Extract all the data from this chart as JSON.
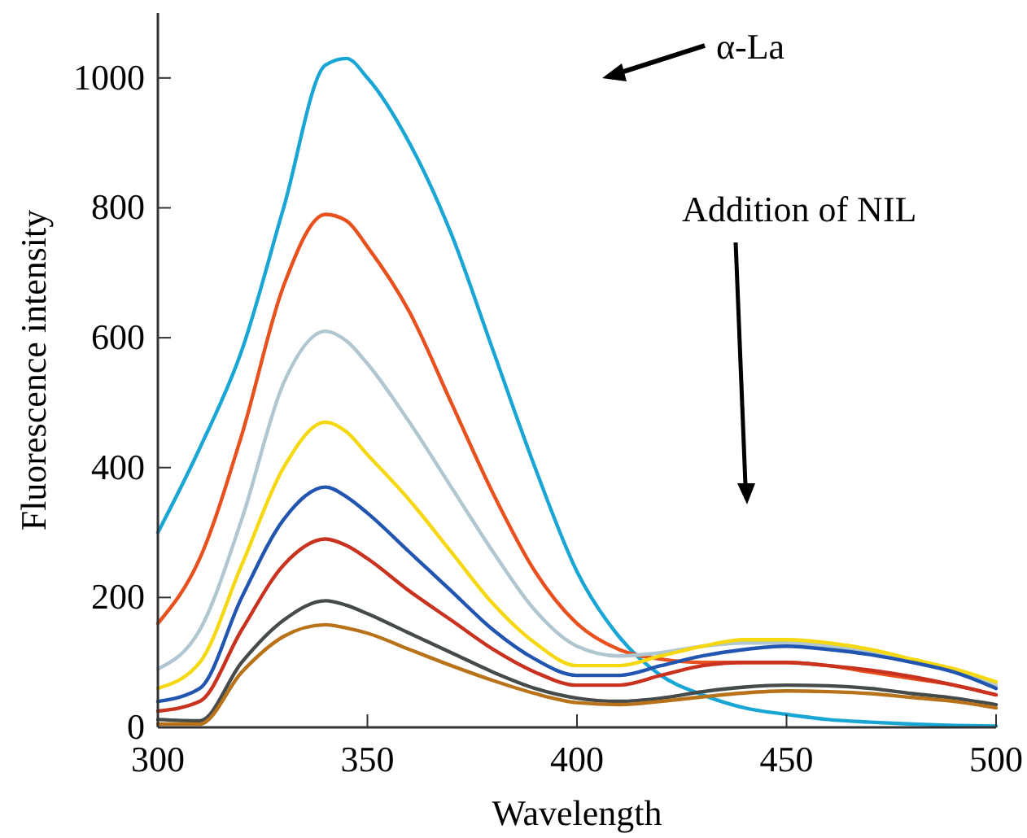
{
  "chart_data": {
    "type": "line",
    "xlabel": "Wavelength",
    "ylabel": "Fluorescence intensity",
    "annotations": [
      "α-La",
      "Addition of NIL"
    ],
    "x": [
      300,
      310,
      320,
      330,
      340,
      345,
      350,
      360,
      370,
      380,
      390,
      400,
      410,
      420,
      430,
      440,
      450,
      460,
      470,
      480,
      490,
      500
    ],
    "xlim": [
      300,
      500
    ],
    "xticks": [
      300,
      350,
      400,
      450,
      500
    ],
    "ylim": [
      0,
      1100
    ],
    "yticks": [
      0,
      200,
      400,
      600,
      800,
      1000
    ],
    "grid": false,
    "marker": "none",
    "line_style": "solid",
    "series": [
      {
        "color": "#1aa6d4",
        "values": [
          300,
          430,
          580,
          800,
          1020,
          1030,
          1000,
          900,
          760,
          580,
          400,
          240,
          140,
          80,
          50,
          30,
          20,
          12,
          8,
          5,
          3,
          2
        ]
      },
      {
        "color": "#e8501e",
        "values": [
          160,
          260,
          450,
          680,
          790,
          780,
          740,
          640,
          500,
          360,
          240,
          160,
          120,
          105,
          100,
          100,
          100,
          95,
          85,
          75,
          65,
          50
        ]
      },
      {
        "color": "#b0c6d0",
        "values": [
          90,
          150,
          320,
          530,
          610,
          595,
          560,
          470,
          370,
          270,
          180,
          125,
          110,
          115,
          125,
          130,
          130,
          125,
          115,
          100,
          85,
          65
        ]
      },
      {
        "color": "#f5d80f",
        "values": [
          60,
          100,
          250,
          400,
          470,
          455,
          420,
          350,
          270,
          190,
          130,
          95,
          95,
          110,
          125,
          135,
          135,
          130,
          120,
          105,
          90,
          70
        ]
      },
      {
        "color": "#2255b0",
        "values": [
          40,
          60,
          200,
          320,
          370,
          355,
          330,
          270,
          210,
          150,
          105,
          80,
          80,
          95,
          110,
          120,
          125,
          120,
          112,
          100,
          85,
          60
        ]
      },
      {
        "color": "#c8321e",
        "values": [
          25,
          40,
          150,
          250,
          290,
          280,
          260,
          210,
          165,
          120,
          85,
          65,
          65,
          80,
          95,
          100,
          100,
          95,
          88,
          78,
          65,
          50
        ]
      },
      {
        "color": "#454a4a",
        "values": [
          12,
          10,
          100,
          165,
          195,
          188,
          175,
          145,
          115,
          85,
          60,
          45,
          40,
          45,
          55,
          62,
          65,
          64,
          60,
          52,
          45,
          35
        ]
      },
      {
        "color": "#b8731a",
        "values": [
          5,
          5,
          85,
          140,
          158,
          153,
          145,
          120,
          95,
          72,
          52,
          38,
          35,
          40,
          47,
          53,
          56,
          55,
          52,
          46,
          40,
          30
        ]
      }
    ]
  }
}
